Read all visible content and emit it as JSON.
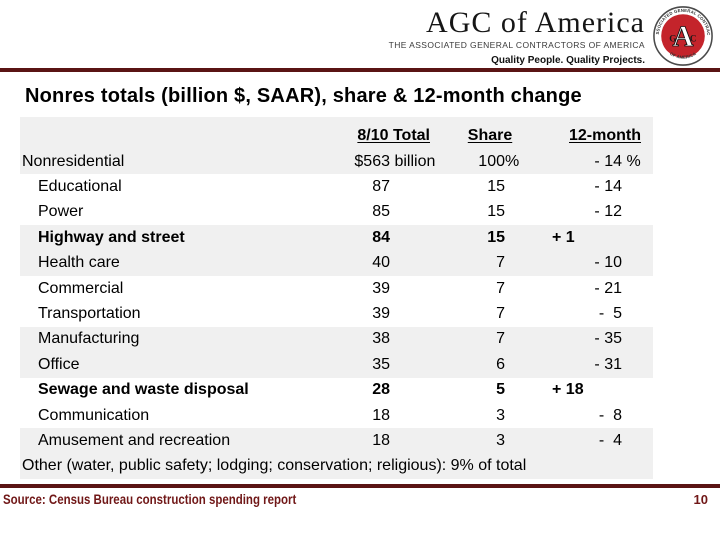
{
  "logo": {
    "title": "AGC of America",
    "subtitle": "THE ASSOCIATED GENERAL CONTRACTORS OF AMERICA",
    "tagline": "Quality People. Quality Projects.",
    "seal": {
      "rim_top": "THE ASSOCIATED GENERAL CONTRACTORS",
      "rim_bottom": "OF AMERICA",
      "letter_a": "A",
      "letter_g": "G",
      "letter_c": "C"
    }
  },
  "slide": {
    "title": "Nonres totals (billion $, SAAR), share & 12-month change"
  },
  "table": {
    "headers": {
      "total": "8/10 Total",
      "share": "Share",
      "change": "12-month"
    },
    "rows": [
      {
        "label": "Nonresidential",
        "indent": false,
        "bold": false,
        "total": "$563",
        "total_suffix": " billion",
        "share": "100",
        "share_suffix": "%",
        "change": "- 14",
        "change_suffix": " %",
        "change_align": "right"
      },
      {
        "label": "Educational",
        "indent": true,
        "bold": false,
        "total": "87",
        "total_suffix": "",
        "share": "15",
        "share_suffix": "",
        "change": "- 14",
        "change_suffix": "",
        "change_align": "right"
      },
      {
        "label": "Power",
        "indent": true,
        "bold": false,
        "total": "85",
        "total_suffix": "",
        "share": "15",
        "share_suffix": "",
        "change": "- 12",
        "change_suffix": "",
        "change_align": "right"
      },
      {
        "label": "Highway and street",
        "indent": true,
        "bold": true,
        "total": "84",
        "total_suffix": "",
        "share": "15",
        "share_suffix": "",
        "change": "+ 1",
        "change_suffix": "",
        "change_align": "left"
      },
      {
        "label": "Health care",
        "indent": true,
        "bold": false,
        "total": "40",
        "total_suffix": "",
        "share": "7",
        "share_suffix": "",
        "change": "- 10",
        "change_suffix": "",
        "change_align": "right"
      },
      {
        "label": "Commercial",
        "indent": true,
        "bold": false,
        "total": "39",
        "total_suffix": "",
        "share": "7",
        "share_suffix": "",
        "change": "- 21",
        "change_suffix": "",
        "change_align": "right"
      },
      {
        "label": "Transportation",
        "indent": true,
        "bold": false,
        "total": "39",
        "total_suffix": "",
        "share": "7",
        "share_suffix": "",
        "change": "-  5",
        "change_suffix": "",
        "change_align": "right"
      },
      {
        "label": "Manufacturing",
        "indent": true,
        "bold": false,
        "total": "38",
        "total_suffix": "",
        "share": "7",
        "share_suffix": "",
        "change": "- 35",
        "change_suffix": "",
        "change_align": "right"
      },
      {
        "label": "Office",
        "indent": true,
        "bold": false,
        "total": "35",
        "total_suffix": "",
        "share": "6",
        "share_suffix": "",
        "change": "- 31",
        "change_suffix": "",
        "change_align": "right"
      },
      {
        "label": "Sewage and waste disposal",
        "indent": true,
        "bold": true,
        "total": "28",
        "total_suffix": "",
        "share": "5",
        "share_suffix": "",
        "change": "+ 18",
        "change_suffix": "",
        "change_align": "left"
      },
      {
        "label": "Communication",
        "indent": true,
        "bold": false,
        "total": "18",
        "total_suffix": "",
        "share": "3",
        "share_suffix": "",
        "change": "-  8",
        "change_suffix": "",
        "change_align": "right"
      },
      {
        "label": "Amusement and recreation",
        "indent": true,
        "bold": false,
        "total": "18",
        "total_suffix": "",
        "share": "3",
        "share_suffix": "",
        "change": "-  4",
        "change_suffix": "",
        "change_align": "right"
      }
    ],
    "footnote": "Other (water, public safety; lodging; conservation; religious): 9% of total"
  },
  "footer": {
    "source": "Source: Census Bureau construction spending report",
    "page": "10"
  },
  "colors": {
    "maroon_rule": "#5a1414",
    "footer_text": "#701717",
    "seal_red": "#c4242b",
    "row_shade": "#f0f0f0"
  }
}
